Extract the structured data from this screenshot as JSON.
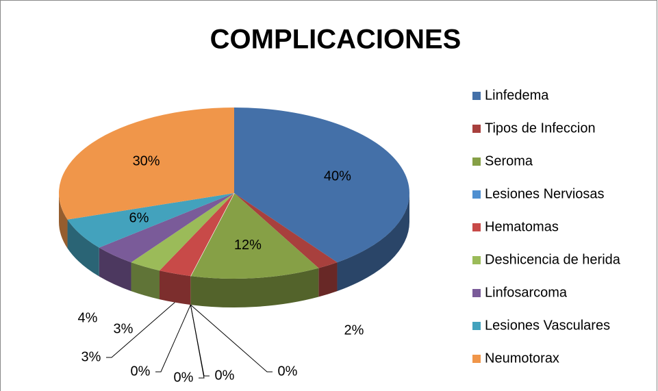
{
  "chart_data": {
    "type": "pie",
    "title": "COMPLICACIONES",
    "categories": [
      "Linfedema",
      "Tipos de Infeccion",
      "Seroma",
      null,
      null,
      null,
      "Lesiones Nerviosas",
      "Hematomas",
      "Deshicencia de herida",
      "Linfosarcoma",
      "Lesiones Vasculares",
      "Neumotorax"
    ],
    "values": [
      40,
      2,
      12,
      0,
      0,
      0,
      0,
      3,
      3,
      4,
      6,
      30
    ],
    "value_labels": [
      "40%",
      "2%",
      "12%",
      "0%",
      "0%",
      "0%",
      "0%",
      "3%",
      "3%",
      "4%",
      "6%",
      "30%"
    ],
    "colors": [
      "#4470a8",
      "#a8403d",
      "#86a046",
      "#8db3e2",
      "#c0c0c0",
      "#e6b9b8",
      "#4f8fd0",
      "#c84a48",
      "#9bbb59",
      "#7a5b99",
      "#43a2bd",
      "#f0964a"
    ],
    "legend": "right"
  }
}
